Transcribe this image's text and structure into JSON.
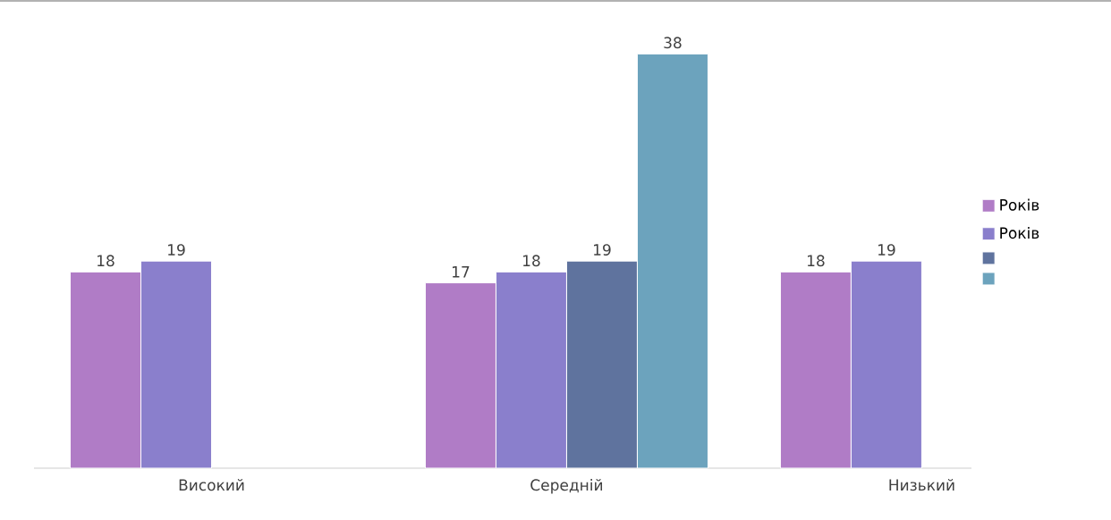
{
  "chart_data": {
    "type": "bar",
    "categories": [
      "Високий",
      "Середній",
      "Низький"
    ],
    "series": [
      {
        "name": "Років",
        "color": "#b07cc6",
        "values": [
          18,
          17,
          18
        ]
      },
      {
        "name": "Років",
        "color": "#8a7fcc",
        "values": [
          19,
          18,
          19
        ]
      },
      {
        "color": "#5f739e",
        "values": [
          null,
          19,
          null
        ]
      },
      {
        "color": "#6ca3bd",
        "values": [
          null,
          38,
          null
        ]
      }
    ],
    "data_labels": true,
    "legend": "right"
  }
}
